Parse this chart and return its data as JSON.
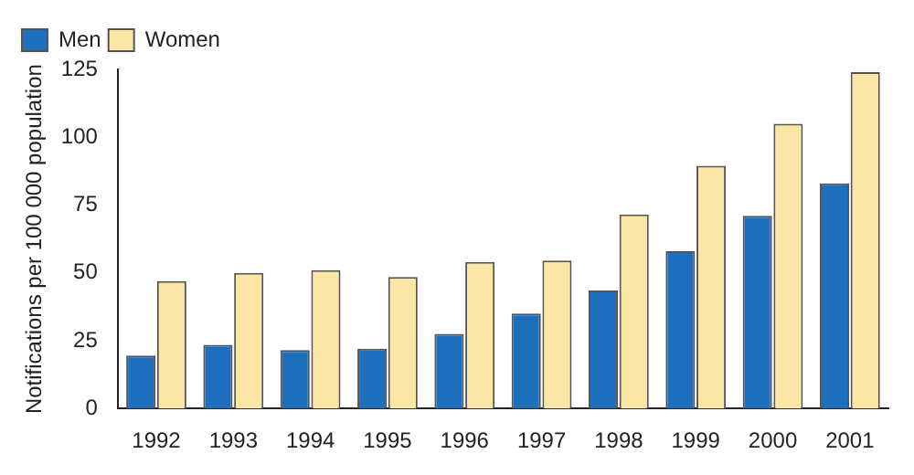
{
  "chart_data": {
    "type": "bar",
    "ylabel": "Notifications per 100 000 population",
    "categories": [
      "1992",
      "1993",
      "1994",
      "1995",
      "1996",
      "1997",
      "1998",
      "1999",
      "2000",
      "2001"
    ],
    "series": [
      {
        "name": "Men",
        "color": "#1f6fbf",
        "values": [
          19.5,
          23.5,
          21.5,
          22,
          27.5,
          35,
          43.5,
          58,
          71,
          83
        ]
      },
      {
        "name": "Women",
        "color": "#fbe6a6",
        "values": [
          47,
          50,
          51,
          48.5,
          54,
          54.5,
          71.5,
          89.5,
          105,
          124
        ]
      }
    ],
    "ylim": [
      0,
      125
    ],
    "yticks": [
      0,
      25,
      50,
      75,
      100,
      125
    ],
    "grid": false,
    "legend": "top left"
  }
}
